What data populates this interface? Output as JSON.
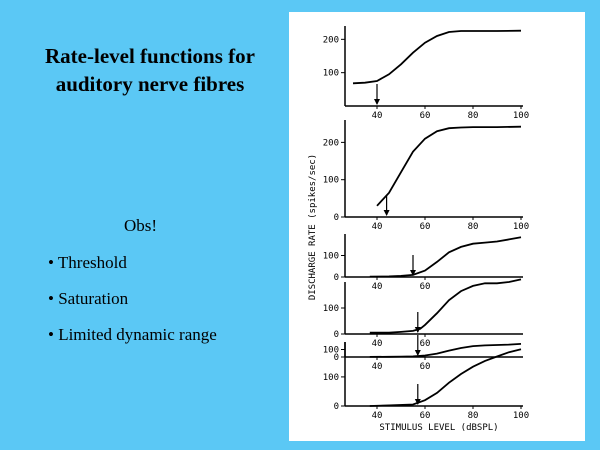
{
  "title": "Rate-level functions for auditory nerve fibres",
  "obs": "Obs!",
  "bullets": [
    "• Threshold",
    "• Saturation",
    "• Limited dynamic range"
  ],
  "chart_data": {
    "type": "line",
    "xlabel": "STIMULUS LEVEL (dBSPL)",
    "ylabel": "DISCHARGE RATE (spikes/sec)",
    "panels": [
      {
        "x_ticks": [
          40,
          60,
          80,
          100
        ],
        "y_ticks": [
          100,
          200
        ],
        "x": [
          30,
          35,
          40,
          45,
          50,
          55,
          60,
          65,
          70,
          75,
          80,
          90,
          100
        ],
        "y": [
          68,
          70,
          75,
          95,
          125,
          160,
          190,
          210,
          222,
          225,
          225,
          225,
          226
        ],
        "threshold_db": 40
      },
      {
        "x_ticks": [
          40,
          60,
          80,
          100
        ],
        "y_ticks": [
          0,
          100,
          200
        ],
        "x": [
          40,
          45,
          50,
          55,
          60,
          65,
          70,
          75,
          80,
          90,
          100
        ],
        "y": [
          30,
          65,
          120,
          175,
          210,
          230,
          238,
          240,
          241,
          241,
          242
        ],
        "threshold_db": 44
      },
      {
        "x_ticks": [
          40,
          60
        ],
        "y_ticks": [
          0,
          100
        ],
        "x": [
          37,
          45,
          50,
          55,
          60,
          65,
          70,
          75,
          80,
          85,
          90,
          95,
          100
        ],
        "y": [
          2,
          3,
          5,
          10,
          30,
          70,
          115,
          140,
          155,
          160,
          165,
          175,
          185
        ],
        "threshold_db": 55
      },
      {
        "x_ticks": [
          40,
          60
        ],
        "y_ticks": [
          0,
          100
        ],
        "x": [
          37,
          45,
          50,
          55,
          58,
          60,
          65,
          70,
          75,
          80,
          85,
          90,
          95,
          100
        ],
        "y": [
          5,
          5,
          8,
          12,
          20,
          35,
          80,
          130,
          165,
          185,
          195,
          195,
          200,
          210
        ],
        "threshold_db": 57
      },
      {
        "x_ticks": [
          40,
          60
        ],
        "y_ticks": [
          0,
          100
        ],
        "x": [
          37,
          45,
          50,
          55,
          60,
          65,
          70,
          75,
          80,
          85,
          90,
          95,
          100
        ],
        "y": [
          2,
          3,
          5,
          8,
          20,
          45,
          85,
          120,
          145,
          155,
          160,
          165,
          175
        ],
        "threshold_db": 57
      },
      {
        "x_ticks": [
          40,
          60,
          80,
          100
        ],
        "y_ticks": [
          0,
          100
        ],
        "x": [
          37,
          45,
          55,
          60,
          65,
          70,
          75,
          80,
          85,
          90,
          95,
          100
        ],
        "y": [
          0,
          2,
          5,
          20,
          45,
          80,
          110,
          135,
          155,
          170,
          185,
          195
        ],
        "threshold_db": 57
      }
    ]
  }
}
